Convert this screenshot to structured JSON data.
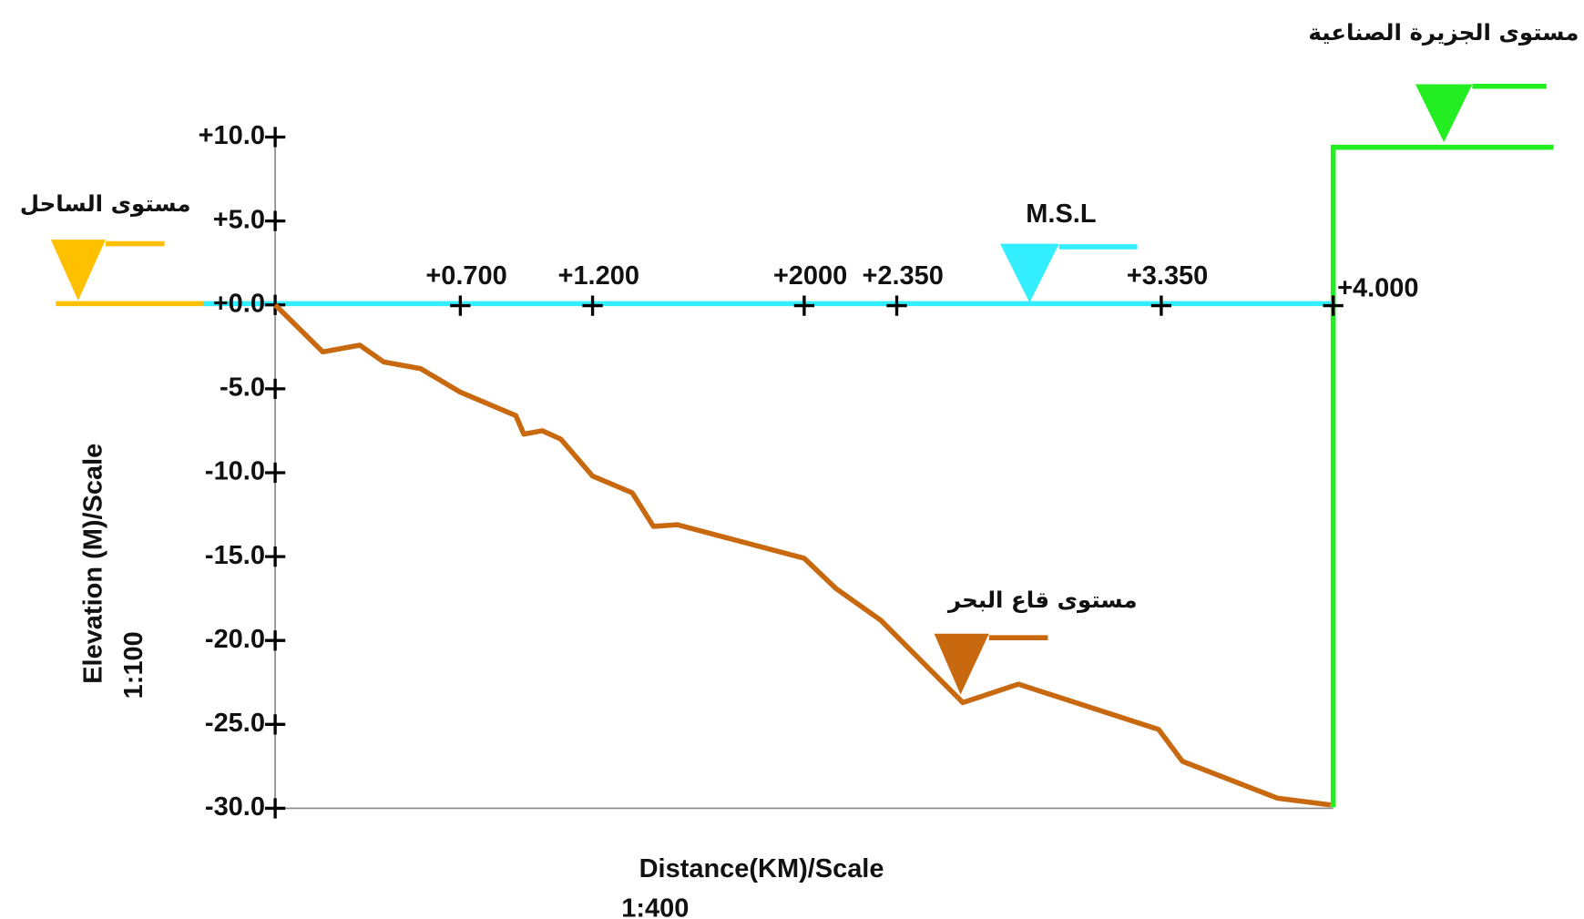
{
  "chart_data": {
    "type": "line",
    "annotations": [
      "مستوى الجزيرة الصناعية",
      "مستوى الساحل",
      "M.S.L",
      "مستوى قاع البحر"
    ],
    "x_label": "Distance(KM)/Scale",
    "x_scale": "1:400",
    "y_label": "Elevation (M)/Scale",
    "y_scale": "1:100",
    "xlim": [
      0,
      4
    ],
    "xticks": [
      {
        "value": 0.7,
        "label": "+0.700"
      },
      {
        "value": 1.2,
        "label": "+1.200"
      },
      {
        "value": 2,
        "label": "+2000"
      },
      {
        "value": 2.35,
        "label": "+2.350"
      },
      {
        "value": 3.35,
        "label": "+3.350"
      },
      {
        "value": 4,
        "label": "+4.000"
      }
    ],
    "ylim": [
      -30,
      10
    ],
    "yticks": [
      {
        "value": 10,
        "label": "+10.0"
      },
      {
        "value": 5,
        "label": "+5.0"
      },
      {
        "value": 0,
        "label": "+0.0"
      },
      {
        "value": -5,
        "label": "-5.0"
      },
      {
        "value": -10,
        "label": "-10.0"
      },
      {
        "value": -15,
        "label": "-15.0"
      },
      {
        "value": -20,
        "label": "-20.0"
      },
      {
        "value": -25,
        "label": "-25.0"
      },
      {
        "value": -30,
        "label": "-30.0"
      }
    ],
    "x": [
      0,
      0.18,
      0.32,
      0.41,
      0.55,
      0.7,
      0.91,
      0.94,
      1.01,
      1.08,
      1.2,
      1.35,
      1.43,
      1.52,
      2.0,
      2.12,
      2.29,
      2.6,
      2.81,
      3.34,
      3.43,
      3.79,
      3.99
    ],
    "series": [
      {
        "color": "#c8690f",
        "values": [
          0,
          -2.8,
          -2.4,
          -3.4,
          -3.8,
          -5.2,
          -6.6,
          -7.7,
          -7.5,
          -8.0,
          -10.2,
          -11.2,
          -13.2,
          -13.1,
          -15.1,
          -16.9,
          -18.8,
          -23.7,
          -22.6,
          -25.3,
          -27.2,
          -29.4,
          -29.8
        ]
      }
    ],
    "msl_color": "#33eeff",
    "coast_color": "#ffc000",
    "island_color": "#22ee22"
  }
}
